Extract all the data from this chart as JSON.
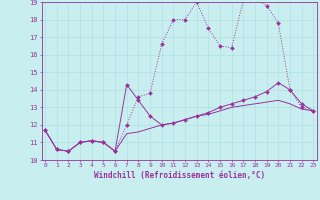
{
  "xlabel": "Windchill (Refroidissement éolien,°C)",
  "background_color": "#c8eef0",
  "grid_color": "#aadddd",
  "line_color": "#993399",
  "xmin": 0,
  "xmax": 23,
  "ymin": 10,
  "ymax": 19,
  "yticks": [
    10,
    11,
    12,
    13,
    14,
    15,
    16,
    17,
    18,
    19
  ],
  "xticks": [
    0,
    1,
    2,
    3,
    4,
    5,
    6,
    7,
    8,
    9,
    10,
    11,
    12,
    13,
    14,
    15,
    16,
    17,
    18,
    19,
    20,
    21,
    22,
    23
  ],
  "series1_x": [
    0,
    1,
    2,
    3,
    4,
    5,
    6,
    7,
    8,
    9,
    10,
    11,
    12,
    13,
    14,
    15,
    16,
    17,
    18,
    19,
    20,
    21,
    22,
    23
  ],
  "series1_y": [
    11.7,
    10.6,
    10.5,
    11.0,
    11.1,
    11.0,
    10.5,
    12.0,
    13.6,
    13.8,
    16.6,
    18.0,
    18.0,
    19.0,
    17.5,
    16.5,
    16.4,
    19.1,
    19.2,
    18.8,
    17.8,
    14.0,
    13.0,
    12.8
  ],
  "series2_x": [
    0,
    1,
    2,
    3,
    4,
    5,
    6,
    7,
    8,
    9,
    10,
    11,
    12,
    13,
    14,
    15,
    16,
    17,
    18,
    19,
    20,
    21,
    22,
    23
  ],
  "series2_y": [
    11.7,
    10.6,
    10.5,
    11.0,
    11.1,
    11.0,
    10.5,
    14.3,
    13.4,
    12.5,
    12.0,
    12.1,
    12.3,
    12.5,
    12.7,
    13.0,
    13.2,
    13.4,
    13.6,
    13.9,
    14.4,
    14.0,
    13.2,
    12.8
  ],
  "series3_x": [
    0,
    1,
    2,
    3,
    4,
    5,
    6,
    7,
    8,
    9,
    10,
    11,
    12,
    13,
    14,
    15,
    16,
    17,
    18,
    19,
    20,
    21,
    22,
    23
  ],
  "series3_y": [
    11.7,
    10.6,
    10.5,
    11.0,
    11.1,
    11.0,
    10.5,
    11.5,
    11.6,
    11.8,
    12.0,
    12.1,
    12.3,
    12.5,
    12.6,
    12.8,
    13.0,
    13.1,
    13.2,
    13.3,
    13.4,
    13.2,
    12.9,
    12.8
  ]
}
